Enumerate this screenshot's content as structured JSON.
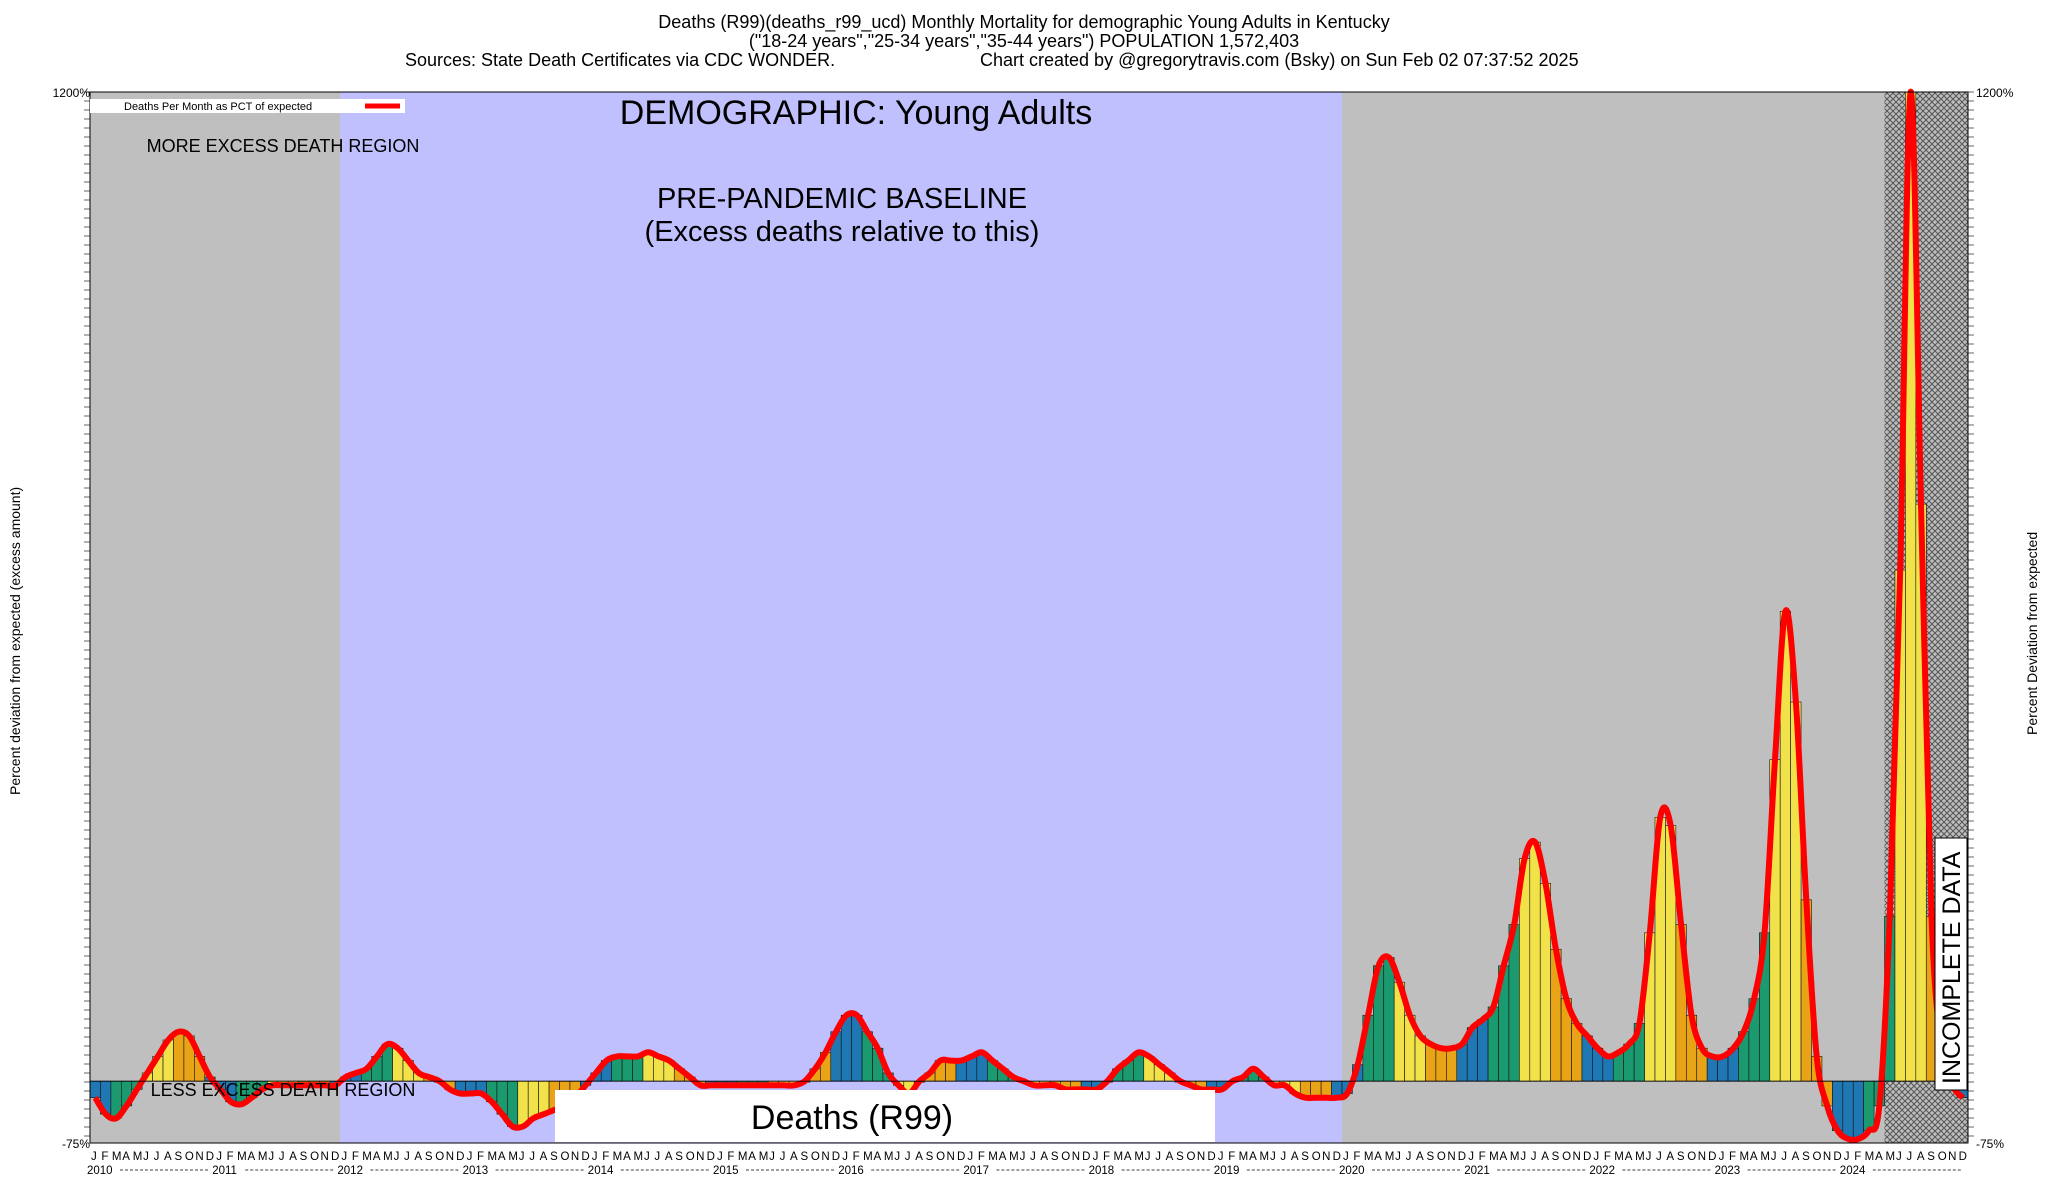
{
  "header": {
    "line1": "Deaths (R99)(deaths_r99_ucd) Monthly Mortality for demographic Young Adults in Kentucky",
    "line2": "(\"18-24 years\",\"25-34 years\",\"35-44 years\") POPULATION 1,572,403",
    "line3_left": "Sources: State Death Certificates via CDC WONDER.",
    "line3_right": "Chart created by @gregorytravis.com (Bsky) on Sun Feb 02 07:37:52 2025"
  },
  "annotations": {
    "demographic": "DEMOGRAPHIC: Young Adults",
    "baseline_1": "PRE-PANDEMIC BASELINE",
    "baseline_2": "(Excess deaths relative to this)",
    "more_region": "MORE EXCESS DEATH REGION",
    "less_region": "LESS EXCESS DEATH REGION",
    "incomplete": "INCOMPLETE DATA",
    "center_label": "Deaths (R99)"
  },
  "colors": {
    "grey_region": "#bfbfbf",
    "baseline_region": "#c0c0ff",
    "line": "#ff0000",
    "bar_winter": "#1f77b4",
    "bar_spring": "#1a9a6e",
    "bar_summer": "#f2e24a",
    "bar_fall": "#e8a317"
  },
  "chart_data": {
    "type": "bar",
    "title": "Deaths (R99)(deaths_r99_ucd) Monthly Mortality for demographic Young Adults in Kentucky",
    "ylabel_left": "Percent deviation from expected (excess amount)",
    "ylabel_right": "Percent Deviation from expected",
    "legend": "Deaths Per Month as PCT of expected",
    "legend_position": "top-left",
    "ylim": [
      -75,
      1200
    ],
    "y_ticks_major": [
      1200,
      -75
    ],
    "y_tick_labels": [
      "1200%",
      "-75%"
    ],
    "month_letters": [
      "J",
      "F",
      "M",
      "A",
      "M",
      "J",
      "J",
      "A",
      "S",
      "O",
      "N",
      "D"
    ],
    "years": [
      "2010",
      "2011",
      "2012",
      "2013",
      "2014",
      "2015",
      "2016",
      "2017",
      "2018",
      "2019",
      "2020",
      "2021",
      "2022",
      "2023",
      "2024"
    ],
    "baseline_years": [
      "2012",
      "2013",
      "2014",
      "2015",
      "2016",
      "2017",
      "2018",
      "2019"
    ],
    "incomplete_from": "2024-05",
    "series": [
      {
        "name": "Deaths Per Month as PCT of expected",
        "values": [
          -20,
          -40,
          -45,
          -30,
          -10,
          10,
          30,
          50,
          60,
          55,
          30,
          5,
          -10,
          -25,
          -28,
          -20,
          -10,
          -5,
          -5,
          -5,
          -5,
          -5,
          -5,
          -5,
          5,
          10,
          15,
          30,
          45,
          40,
          25,
          10,
          5,
          0,
          -10,
          -15,
          -15,
          -15,
          -25,
          -40,
          -55,
          -55,
          -45,
          -40,
          -35,
          -30,
          -20,
          -5,
          10,
          25,
          30,
          30,
          30,
          35,
          30,
          25,
          15,
          5,
          -5,
          -5,
          -5,
          -5,
          -5,
          -5,
          -5,
          -5,
          -5,
          -5,
          0,
          15,
          35,
          60,
          80,
          80,
          60,
          40,
          10,
          -5,
          -15,
          0,
          10,
          25,
          25,
          25,
          30,
          35,
          25,
          15,
          5,
          0,
          -5,
          -5,
          -5,
          -10,
          -10,
          -10,
          -10,
          0,
          15,
          25,
          35,
          30,
          20,
          10,
          0,
          -5,
          -10,
          -10,
          -10,
          0,
          5,
          15,
          5,
          -5,
          -5,
          -15,
          -20,
          -20,
          -20,
          -20,
          -15,
          20,
          80,
          140,
          150,
          120,
          80,
          55,
          45,
          40,
          40,
          45,
          65,
          75,
          90,
          140,
          190,
          270,
          290,
          240,
          160,
          100,
          70,
          55,
          40,
          30,
          35,
          45,
          70,
          180,
          320,
          310,
          190,
          80,
          40,
          30,
          30,
          40,
          60,
          100,
          180,
          390,
          570,
          460,
          220,
          30,
          -30,
          -60,
          -70,
          -70,
          -60,
          -30,
          200,
          620,
          1200,
          700,
          200,
          40,
          -5,
          -20
        ]
      }
    ]
  }
}
